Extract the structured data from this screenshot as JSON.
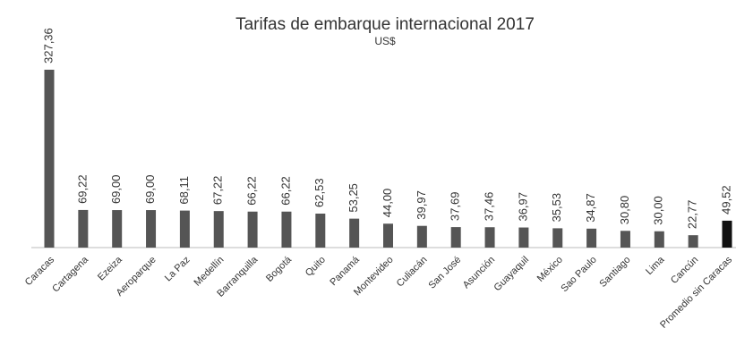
{
  "chart_data": {
    "type": "bar",
    "title": "Tarifas de embarque internacional 2017",
    "subtitle": "US$",
    "categories": [
      "Caracas",
      "Cartagena",
      "Ezeiza",
      "Aeroparque",
      "La Paz",
      "Medellín",
      "Barranquilla",
      "Bogotá",
      "Quito",
      "Panamá",
      "Montevideo",
      "Culiacán",
      "San José",
      "Asunción",
      "Guayaquil",
      "México",
      "Sao Paulo",
      "Santiago",
      "Lima",
      "Cancún",
      "Promedio sin Caracas"
    ],
    "values": [
      327.36,
      69.22,
      69.0,
      69.0,
      68.11,
      67.22,
      66.22,
      66.22,
      62.53,
      53.25,
      44.0,
      39.97,
      37.69,
      37.46,
      36.97,
      35.53,
      34.87,
      30.8,
      30.0,
      22.77,
      49.52
    ],
    "value_labels": [
      "327,36",
      "69,22",
      "69,00",
      "69,00",
      "68,11",
      "67,22",
      "66,22",
      "66,22",
      "62,53",
      "53,25",
      "44,00",
      "39,97",
      "37,69",
      "37,46",
      "36,97",
      "35,53",
      "34,87",
      "30,80",
      "30,00",
      "22,77",
      "49,52"
    ],
    "colors": [
      "#555555",
      "#555555",
      "#555555",
      "#555555",
      "#555555",
      "#555555",
      "#555555",
      "#555555",
      "#555555",
      "#555555",
      "#555555",
      "#555555",
      "#555555",
      "#555555",
      "#555555",
      "#555555",
      "#555555",
      "#555555",
      "#555555",
      "#555555",
      "#111111"
    ]
  }
}
